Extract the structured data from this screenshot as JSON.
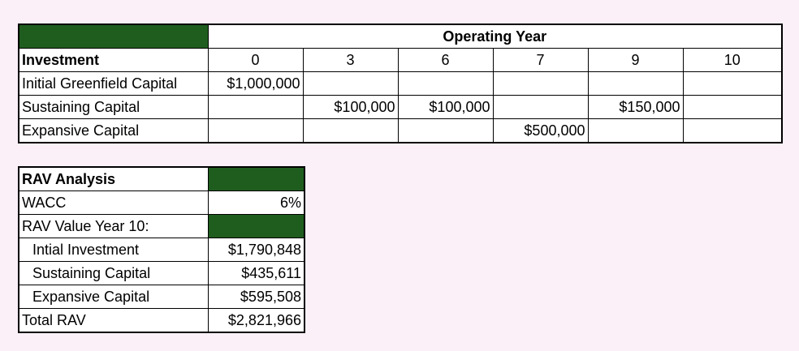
{
  "investment_table": {
    "header_title": "Operating Year",
    "investment_label": "Investment",
    "years": [
      "0",
      "3",
      "6",
      "7",
      "9",
      "10"
    ],
    "rows": [
      {
        "label": "Initial Greenfield Capital",
        "values": [
          "$1,000,000",
          "",
          "",
          "",
          "",
          ""
        ]
      },
      {
        "label": "Sustaining Capital",
        "values": [
          "",
          "$100,000",
          "$100,000",
          "",
          "$150,000",
          ""
        ]
      },
      {
        "label": "Expansive Capital",
        "values": [
          "",
          "",
          "",
          "$500,000",
          "",
          ""
        ]
      }
    ]
  },
  "rav_table": {
    "title": "RAV Analysis",
    "wacc_label": "WACC",
    "wacc_value": "6%",
    "rav_year_label": "RAV Value Year 10:",
    "items": [
      {
        "label": "Intial Investment",
        "value": "$1,790,848"
      },
      {
        "label": "Sustaining Capital",
        "value": "$435,611"
      },
      {
        "label": "Expansive Capital",
        "value": "$595,508"
      }
    ],
    "total_label": "Total RAV",
    "total_value": "$2,821,966"
  },
  "colors": {
    "header_fill": "#1f5d1f",
    "background": "#fcf0f8"
  }
}
